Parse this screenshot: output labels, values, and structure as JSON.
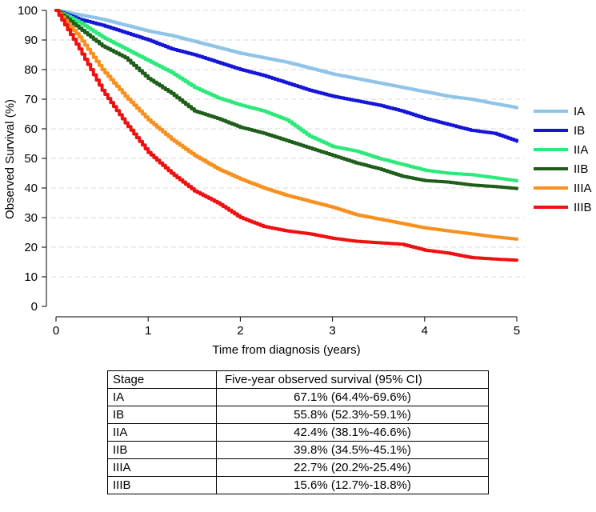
{
  "chart_data": {
    "type": "line",
    "xlabel": "Time from diagnosis (years)",
    "ylabel": "Observed Survival (%)",
    "xlim": [
      0,
      5
    ],
    "ylim": [
      0,
      100
    ],
    "xticks": [
      0,
      1,
      2,
      3,
      4,
      5
    ],
    "yticks": [
      0,
      10,
      20,
      30,
      40,
      50,
      60,
      70,
      80,
      90,
      100
    ],
    "grid": "horizontal dashed",
    "legend_position": "right",
    "x": [
      0,
      0.25,
      0.5,
      0.75,
      1,
      1.25,
      1.5,
      1.75,
      2,
      2.25,
      2.5,
      2.75,
      3,
      3.25,
      3.5,
      3.75,
      4,
      4.25,
      4.5,
      4.75,
      5
    ],
    "series": [
      {
        "name": "IA",
        "color": "#8fc4e8",
        "values": [
          100,
          98.5,
          97,
          95,
          93,
          91.5,
          89.5,
          87.5,
          85.5,
          84,
          82.5,
          80.5,
          78.5,
          77,
          75.5,
          74,
          72.5,
          71,
          70,
          68.5,
          67.1
        ]
      },
      {
        "name": "IB",
        "color": "#1515d8",
        "values": [
          100,
          97,
          95,
          92.5,
          90,
          87,
          85,
          82.5,
          80,
          78,
          75.5,
          73,
          71,
          69.5,
          68,
          66,
          63.5,
          61.5,
          59.5,
          58.5,
          55.8
        ]
      },
      {
        "name": "IIA",
        "color": "#2de87a",
        "values": [
          100,
          96,
          91,
          87,
          83,
          79,
          74,
          70.5,
          68,
          66,
          63,
          57.5,
          54,
          52.5,
          50,
          48,
          46,
          45,
          44.5,
          43.5,
          42.4
        ]
      },
      {
        "name": "IIB",
        "color": "#1e5e1a",
        "values": [
          100,
          94,
          88,
          84,
          77,
          72,
          66,
          63.5,
          60.5,
          58.5,
          56,
          53.5,
          51,
          48.5,
          46.5,
          44,
          42.5,
          42,
          41,
          40.5,
          39.8
        ]
      },
      {
        "name": "IIIA",
        "color": "#f7901e",
        "values": [
          100,
          91,
          80,
          71,
          63,
          56.5,
          51,
          46.5,
          43,
          40,
          37.5,
          35.5,
          33.5,
          31,
          29.5,
          28,
          26.5,
          25.5,
          24.5,
          23.5,
          22.7
        ]
      },
      {
        "name": "IIIB",
        "color": "#ee1111",
        "values": [
          100,
          87,
          73,
          62,
          52,
          45,
          39,
          35,
          30,
          27,
          25.5,
          24.5,
          23,
          22,
          21.5,
          21,
          19,
          18,
          16.5,
          16,
          15.6
        ]
      }
    ]
  },
  "table": {
    "headers": [
      "Stage",
      "Five-year observed survival (95% CI)"
    ],
    "rows": [
      [
        "IA",
        "67.1% (64.4%-69.6%)"
      ],
      [
        "IB",
        "55.8% (52.3%-59.1%)"
      ],
      [
        "IIA",
        "42.4% (38.1%-46.6%)"
      ],
      [
        "IIB",
        "39.8% (34.5%-45.1%)"
      ],
      [
        "IIIA",
        "22.7% (20.2%-25.4%)"
      ],
      [
        "IIIB",
        "15.6% (12.7%-18.8%)"
      ]
    ]
  }
}
